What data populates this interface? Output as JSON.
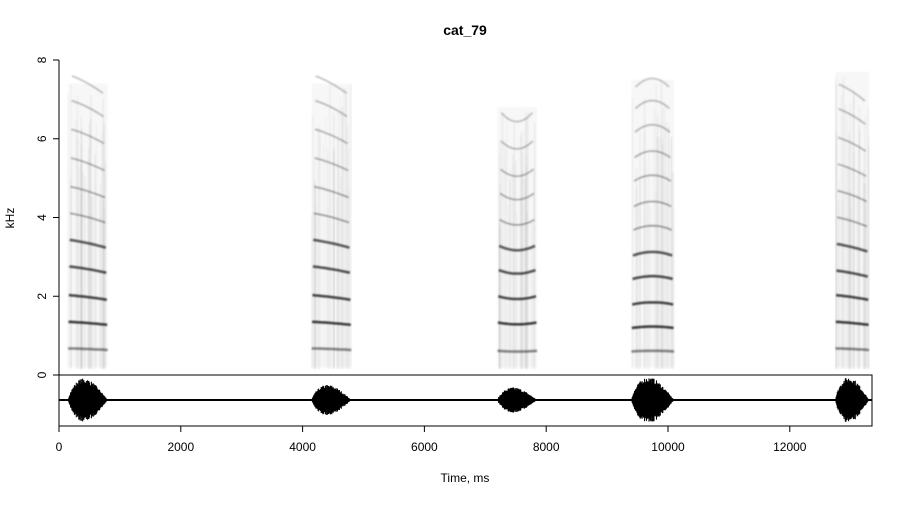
{
  "chart_data": {
    "type": "spectrogram",
    "title": "cat_79",
    "xlabel": "Time, ms",
    "ylabel": "kHz",
    "xlim": [
      0,
      13350
    ],
    "ylim": [
      0,
      8
    ],
    "x_ticks": [
      0,
      2000,
      4000,
      6000,
      8000,
      10000,
      12000
    ],
    "y_ticks": [
      0,
      2,
      4,
      6,
      8
    ],
    "colors": {
      "ink": "#000000",
      "background": "#ffffff"
    },
    "calls": [
      {
        "start_ms": 150,
        "end_ms": 800,
        "max_khz": 7.4,
        "harmonics_khz": [
          0.65,
          1.3,
          1.95,
          2.65,
          3.3,
          3.95,
          4.6,
          5.3,
          6.0,
          6.7,
          7.3
        ],
        "shape": "down",
        "waveform_amp": 0.85
      },
      {
        "start_ms": 4150,
        "end_ms": 4800,
        "max_khz": 7.4,
        "harmonics_khz": [
          0.65,
          1.3,
          1.95,
          2.65,
          3.3,
          3.95,
          4.6,
          5.3,
          6.0,
          6.7,
          7.3
        ],
        "shape": "down",
        "waveform_amp": 0.6
      },
      {
        "start_ms": 7200,
        "end_ms": 7850,
        "max_khz": 6.8,
        "harmonics_khz": [
          0.6,
          1.3,
          1.95,
          2.6,
          3.2,
          3.85,
          4.5,
          5.1,
          5.8,
          6.5
        ],
        "shape": "dip",
        "waveform_amp": 0.5
      },
      {
        "start_ms": 9400,
        "end_ms": 10100,
        "max_khz": 7.5,
        "harmonics_khz": [
          0.6,
          1.2,
          1.8,
          2.45,
          3.05,
          3.7,
          4.3,
          4.95,
          5.55,
          6.2,
          6.8,
          7.35
        ],
        "shape": "arch",
        "waveform_amp": 0.9
      },
      {
        "start_ms": 12750,
        "end_ms": 13300,
        "max_khz": 7.7,
        "harmonics_khz": [
          0.65,
          1.3,
          1.95,
          2.55,
          3.2,
          3.85,
          4.5,
          5.15,
          5.8,
          6.5,
          7.1
        ],
        "shape": "down",
        "waveform_amp": 0.9
      }
    ]
  }
}
